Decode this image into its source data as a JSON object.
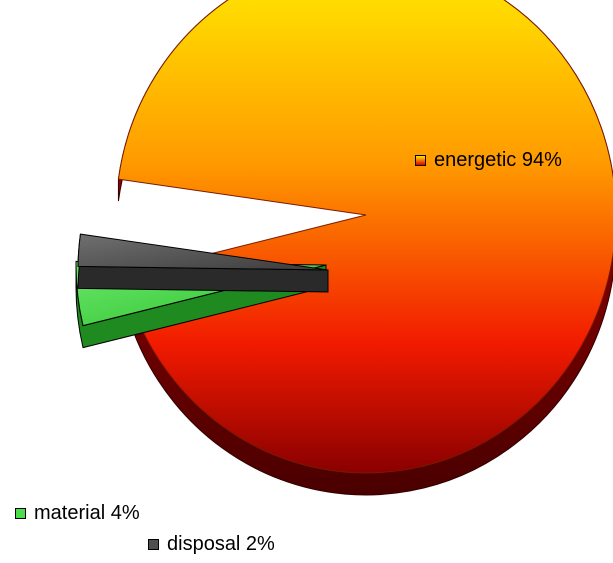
{
  "chart_data": {
    "type": "pie",
    "style": "3d-exploded",
    "slices": [
      {
        "label": "energetic",
        "value": 94,
        "display": "energetic 94%",
        "color_top": "#ffe600",
        "color_bottom": "#e00000",
        "side_color": "#b00000"
      },
      {
        "label": "material",
        "value": 4,
        "display": "material 4%",
        "color_top": "#4cdc4c",
        "color_bottom": "#22b822",
        "side_color": "#1f8a1f"
      },
      {
        "label": "disposal",
        "value": 2,
        "display": "disposal 2%",
        "color_top": "#606060",
        "color_bottom": "#404040",
        "side_color": "#2a2a2a"
      }
    ],
    "legend_placement": "labels-adjacent"
  }
}
